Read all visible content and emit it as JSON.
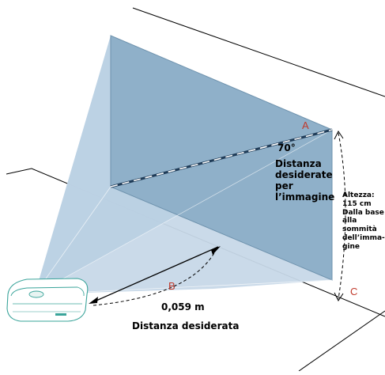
{
  "labels": {
    "angle": "70°",
    "diagonal_lines": [
      "Distanza",
      "desiderate",
      "per",
      "l’immagine"
    ],
    "height_lines": [
      "Altezza:",
      "115 cm",
      "Dalla base",
      "alla",
      "sommità",
      "dell’imma-",
      "gine"
    ],
    "distance_value": "0,059 m",
    "distance_caption": "Distanza desiderata",
    "point_a": "A",
    "point_b": "B",
    "point_c": "C"
  },
  "colors": {
    "screen_fill": "#8fb0c9",
    "beam_light": "#d6e3ef",
    "beam_mid": "#b9cfe2",
    "line": "#000000",
    "letter": "#c0392b",
    "projector": "#3aa49a"
  }
}
